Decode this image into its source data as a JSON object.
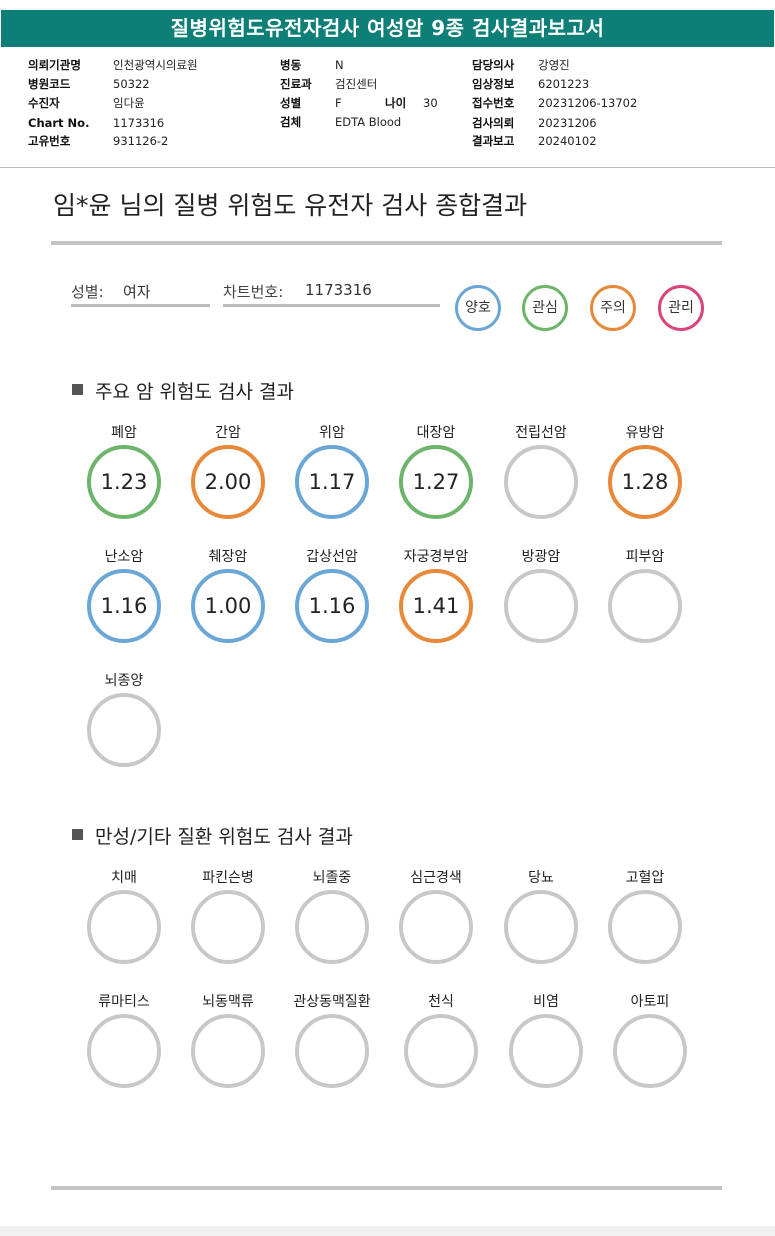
{
  "report": {
    "title": "질병위험도유전자검사 여성암 9종 검사결과보고서",
    "fields": [
      {
        "label": "의뢰기관명",
        "value": "인천광역시의료원"
      },
      {
        "label": "병원코드",
        "value": "50322"
      },
      {
        "label": "수진자",
        "value": "임다윤"
      },
      {
        "label": "Chart No.",
        "value": "1173316"
      },
      {
        "label": "고유번호",
        "value": "931126-2"
      },
      {
        "label": "병동",
        "value": "N"
      },
      {
        "label": "진료과",
        "value": "검진센터"
      },
      {
        "label": "성별",
        "value": "F"
      },
      {
        "label": "나이",
        "value": "30"
      },
      {
        "label": "검체",
        "value": "EDTA Blood"
      },
      {
        "label": "담당의사",
        "value": "강영진"
      },
      {
        "label": "임상정보",
        "value": "6201223"
      },
      {
        "label": "접수번호",
        "value": "20231206-13702"
      },
      {
        "label": "검사의뢰",
        "value": "20231206"
      },
      {
        "label": "결과보고",
        "value": "20240102"
      }
    ]
  },
  "summary": {
    "title": "임*윤 님의 질병 위험도 유전자 검사 종합결과",
    "sex_label": "성별:",
    "sex_value": "여자",
    "chart_label": "차트번호:",
    "chart_value": "1173316"
  },
  "legend": [
    {
      "label": "양호",
      "color": "#6aa6d6"
    },
    {
      "label": "관심",
      "color": "#6cb56a"
    },
    {
      "label": "주의",
      "color": "#e8893a"
    },
    {
      "label": "관리",
      "color": "#d9447a"
    }
  ],
  "colors": {
    "good": "#6aa6d6",
    "interest": "#6cb56a",
    "caution": "#e8893a",
    "manage": "#d9447a",
    "none": "#c8c8c8",
    "header": "#0e7f77"
  },
  "cancer_section": {
    "title": "주요 암 위험도 검사 결과",
    "items": [
      {
        "label": "폐암",
        "value": "1.23",
        "status": "interest"
      },
      {
        "label": "간암",
        "value": "2.00",
        "status": "caution"
      },
      {
        "label": "위암",
        "value": "1.17",
        "status": "good"
      },
      {
        "label": "대장암",
        "value": "1.27",
        "status": "interest"
      },
      {
        "label": "전립선암",
        "value": "",
        "status": "none"
      },
      {
        "label": "유방암",
        "value": "1.28",
        "status": "caution"
      },
      {
        "label": "난소암",
        "value": "1.16",
        "status": "good"
      },
      {
        "label": "췌장암",
        "value": "1.00",
        "status": "good"
      },
      {
        "label": "갑상선암",
        "value": "1.16",
        "status": "good"
      },
      {
        "label": "자궁경부암",
        "value": "1.41",
        "status": "caution"
      },
      {
        "label": "방광암",
        "value": "",
        "status": "none"
      },
      {
        "label": "피부암",
        "value": "",
        "status": "none"
      },
      {
        "label": "뇌종양",
        "value": "",
        "status": "none"
      }
    ]
  },
  "chronic_section": {
    "title": "만성/기타 질환 위험도 검사 결과",
    "items": [
      {
        "label": "치매",
        "value": "",
        "status": "none"
      },
      {
        "label": "파킨슨병",
        "value": "",
        "status": "none"
      },
      {
        "label": "뇌졸중",
        "value": "",
        "status": "none"
      },
      {
        "label": "심근경색",
        "value": "",
        "status": "none"
      },
      {
        "label": "당뇨",
        "value": "",
        "status": "none"
      },
      {
        "label": "고혈압",
        "value": "",
        "status": "none"
      },
      {
        "label": "류마티스",
        "value": "",
        "status": "none"
      },
      {
        "label": "뇌동맥류",
        "value": "",
        "status": "none"
      },
      {
        "label": "관상동맥질환",
        "value": "",
        "status": "none"
      },
      {
        "label": "천식",
        "value": "",
        "status": "none"
      },
      {
        "label": "비염",
        "value": "",
        "status": "none"
      },
      {
        "label": "아토피",
        "value": "",
        "status": "none"
      }
    ]
  }
}
